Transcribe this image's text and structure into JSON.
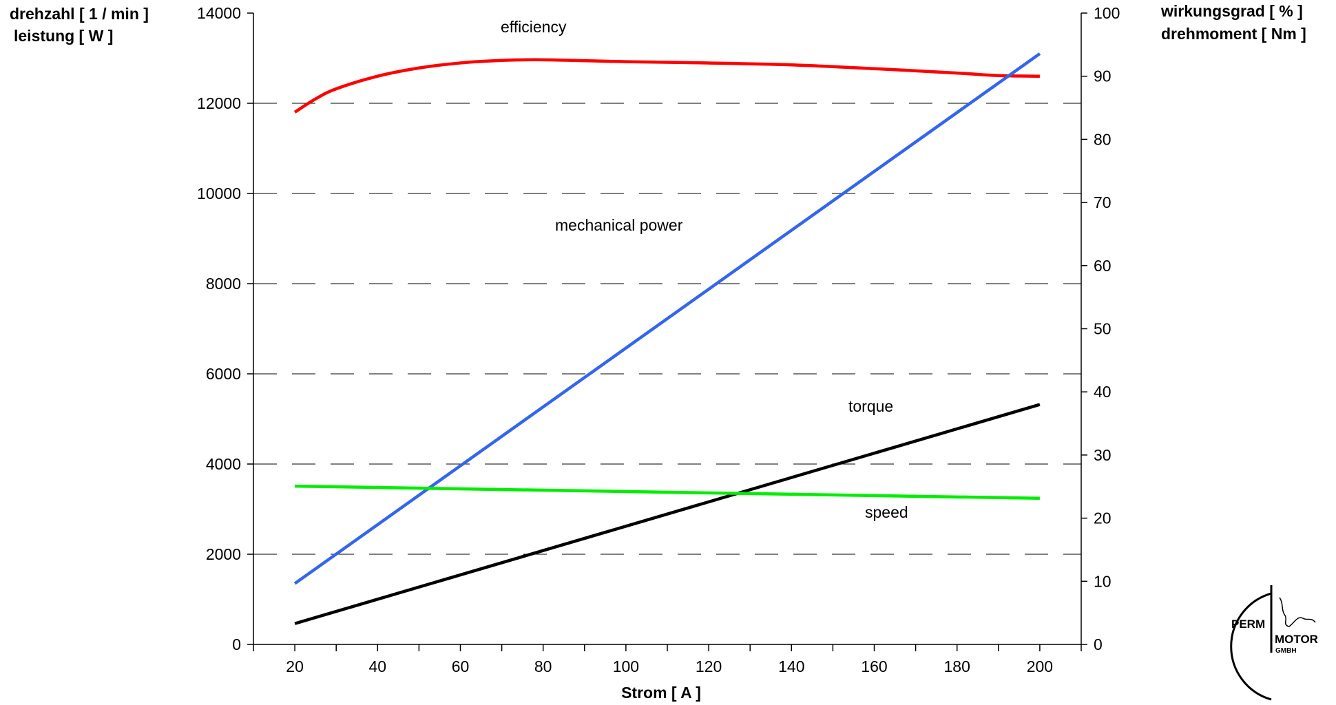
{
  "chart_data": {
    "type": "line",
    "xlabel": "Strom [ A ]",
    "ylabel_left": [
      "drehzahl [ 1 / min ]",
      "leistung [ W ]"
    ],
    "ylabel_right": [
      "wirkungsgrad [ % ]",
      "drehmoment [ Nm ]"
    ],
    "xlim": [
      10,
      210
    ],
    "ylim_left": [
      0,
      14000
    ],
    "ylim_right": [
      0,
      100
    ],
    "x_ticks": [
      20,
      40,
      60,
      80,
      100,
      120,
      140,
      160,
      180,
      200
    ],
    "y_left_ticks": [
      0,
      2000,
      4000,
      6000,
      8000,
      10000,
      12000,
      14000
    ],
    "y_right_ticks": [
      0,
      10,
      20,
      30,
      40,
      50,
      60,
      70,
      80,
      90,
      100
    ],
    "grid": "horizontal dashed",
    "series": [
      {
        "name": "efficiency",
        "axis": "right",
        "color": "#ff0000",
        "x": [
          20,
          25,
          30,
          40,
          50,
          60,
          70,
          80,
          100,
          120,
          140,
          160,
          180,
          190,
          200
        ],
        "y": [
          84.3,
          86.4,
          88.0,
          90.0,
          91.3,
          92.1,
          92.5,
          92.6,
          92.3,
          92.1,
          91.8,
          91.2,
          90.5,
          90.1,
          90.0
        ]
      },
      {
        "name": "mechanical power",
        "axis": "left",
        "color": "#3366ee",
        "x": [
          20,
          200
        ],
        "y": [
          1350,
          13100
        ]
      },
      {
        "name": "torque",
        "axis": "right",
        "color": "#000000",
        "x": [
          20,
          200
        ],
        "y": [
          3.3,
          38.0
        ]
      },
      {
        "name": "speed",
        "axis": "left",
        "color": "#00ee00",
        "x": [
          20,
          200
        ],
        "y": [
          3510,
          3240
        ]
      }
    ],
    "annotations": {
      "efficiency": "efficiency",
      "mechanical_power": "mechanical power",
      "torque": "torque",
      "speed": "speed"
    }
  },
  "logo": {
    "word1": "PERM",
    "word2": "MOTOR",
    "word3": "GMBH"
  }
}
